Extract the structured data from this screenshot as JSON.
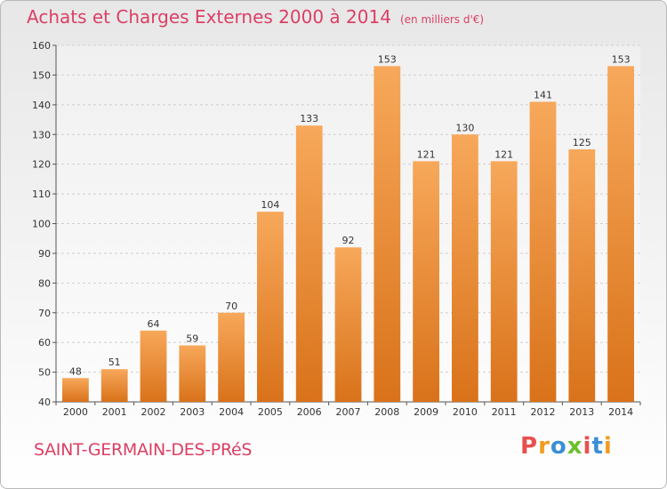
{
  "header": {
    "title": "Achats et Charges Externes 2000 à 2014",
    "unit": "(en milliers d'€)"
  },
  "footer": {
    "place": "SAINT-GERMAIN-DES-PRéS",
    "logo_text": "Proxiti",
    "logo_colors": [
      "#e8504f",
      "#f29c1e",
      "#3a8fd6",
      "#6cbf2c",
      "#e8504f",
      "#3a8fd6",
      "#f29c1e"
    ]
  },
  "colors": {
    "title": "#db3f64",
    "bar_light": "#f7a85a",
    "bar_dark": "#d9721a",
    "grid": "#cfcfcf",
    "axis_text": "#333333"
  },
  "chart_data": {
    "type": "bar",
    "title": "Achats et Charges Externes 2000 à 2014",
    "subtitle": "(en milliers d'€)",
    "xlabel": "",
    "ylabel": "",
    "categories": [
      "2000",
      "2001",
      "2002",
      "2003",
      "2004",
      "2005",
      "2006",
      "2007",
      "2008",
      "2009",
      "2010",
      "2011",
      "2012",
      "2013",
      "2014"
    ],
    "values": [
      48,
      51,
      64,
      59,
      70,
      104,
      133,
      92,
      153,
      121,
      130,
      121,
      141,
      125,
      153
    ],
    "ylim": [
      40,
      160
    ],
    "yticks": [
      40,
      50,
      60,
      70,
      80,
      90,
      100,
      110,
      120,
      130,
      140,
      150,
      160
    ],
    "grid": "horizontal dashed",
    "legend": "none"
  }
}
